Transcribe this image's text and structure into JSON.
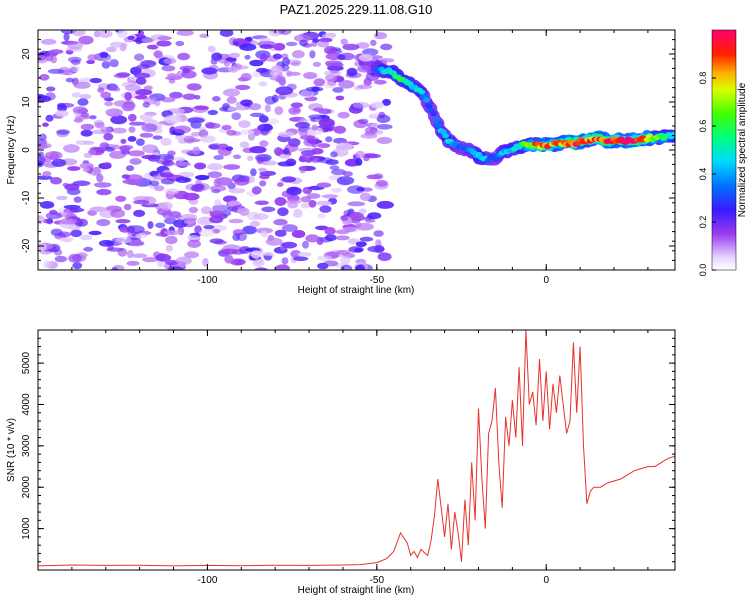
{
  "title": "PAZ1.2025.229.11.08.G10",
  "chart_data": [
    {
      "type": "heatmap",
      "title": "PAZ1.2025.229.11.08.G10",
      "xlabel": "Height of straight line (km)",
      "ylabel": "Frequency (Hz)",
      "xlim": [
        -150,
        38
      ],
      "ylim": [
        -25,
        25
      ],
      "x_ticks": [
        -100,
        -50,
        0
      ],
      "x_tick_labels": [
        "-100",
        "-50",
        "0"
      ],
      "y_ticks": [
        -20,
        -10,
        0,
        10,
        20
      ],
      "y_tick_labels": [
        "-20",
        "-10",
        "0",
        "10",
        "20"
      ],
      "grid": false,
      "noise_region": {
        "x_range": [
          -150,
          -47
        ],
        "y_range": [
          -25,
          25
        ],
        "typical_amplitude": [
          0.05,
          0.25
        ]
      },
      "signal_track": {
        "description_points_x": [
          -50,
          -47,
          -45,
          -43,
          -41,
          -39,
          -37,
          -35,
          -33,
          -31,
          -29,
          -27,
          -25,
          -23,
          -21,
          -19,
          -17,
          -15,
          -13,
          -11,
          -9,
          -7,
          -5,
          -3,
          0,
          3,
          6,
          9,
          12,
          15,
          18,
          21,
          24,
          27,
          30,
          33,
          36,
          38
        ],
        "frequency": [
          17,
          16.5,
          16,
          15,
          14,
          13,
          12,
          10,
          7,
          4,
          2,
          1,
          0.5,
          0,
          -1,
          -1.5,
          -1.8,
          -1.5,
          -0.5,
          0,
          0.5,
          1,
          1,
          1,
          1,
          1.2,
          1.5,
          1.5,
          2,
          2.5,
          2,
          2,
          2,
          2,
          2.5,
          2.5,
          3,
          3
        ],
        "amplitude": [
          0.35,
          0.45,
          0.5,
          0.55,
          0.55,
          0.5,
          0.45,
          0.35,
          0.3,
          0.4,
          0.45,
          0.4,
          0.3,
          0.35,
          0.45,
          0.5,
          0.35,
          0.3,
          0.4,
          0.45,
          0.5,
          0.55,
          0.7,
          0.85,
          0.9,
          0.8,
          0.9,
          0.95,
          0.85,
          0.9,
          0.95,
          0.95,
          0.95,
          0.95,
          0.9,
          0.6,
          0.55,
          0.5
        ]
      },
      "colorbar": {
        "label": "Normalized spectral amplitude",
        "range": [
          0,
          1
        ],
        "ticks": [
          0.0,
          0.2,
          0.4,
          0.6,
          0.8
        ],
        "tick_labels": [
          "0.0",
          "0.2",
          "0.4",
          "0.6",
          "0.8"
        ],
        "colormap": "rainbow (white, violet, blue, cyan, green, yellow, orange, red, magenta)"
      }
    },
    {
      "type": "line",
      "xlabel": "Height of straight line (km)",
      "ylabel": "SNR (10 * v/v)",
      "xlim": [
        -150,
        38
      ],
      "ylim": [
        0,
        5800
      ],
      "x_ticks": [
        -100,
        -50,
        0
      ],
      "x_tick_labels": [
        "-100",
        "-50",
        "0"
      ],
      "y_ticks": [
        1000,
        2000,
        3000,
        4000,
        5000
      ],
      "y_tick_labels": [
        "1000",
        "2000",
        "3000",
        "4000",
        "5000"
      ],
      "grid": false,
      "series": [
        {
          "color": "#e8322c",
          "x": [
            -150,
            -140,
            -130,
            -120,
            -110,
            -100,
            -90,
            -80,
            -70,
            -60,
            -55,
            -50,
            -47,
            -45,
            -43,
            -41,
            -40,
            -39,
            -38,
            -37,
            -36,
            -35,
            -34,
            -33,
            -32,
            -31,
            -30,
            -29,
            -28,
            -27,
            -26,
            -25,
            -24,
            -23,
            -22,
            -21,
            -20,
            -19,
            -18,
            -17,
            -16,
            -15,
            -14,
            -13,
            -12,
            -11,
            -10,
            -9,
            -8,
            -7,
            -6,
            -5,
            -4,
            -3,
            -2,
            -1,
            0,
            1,
            2,
            3,
            4,
            5,
            6,
            7,
            8,
            9,
            10,
            11,
            12,
            13,
            14,
            16,
            18,
            20,
            22,
            24,
            26,
            28,
            30,
            32,
            34,
            36,
            38
          ],
          "y": [
            100,
            120,
            110,
            115,
            100,
            110,
            105,
            115,
            110,
            120,
            130,
            180,
            280,
            450,
            900,
            650,
            350,
            450,
            300,
            500,
            420,
            350,
            700,
            1300,
            2200,
            1500,
            800,
            1600,
            500,
            1400,
            900,
            200,
            1700,
            600,
            2600,
            1200,
            3900,
            2200,
            1000,
            3300,
            3600,
            4400,
            2600,
            1500,
            3700,
            3000,
            4100,
            3200,
            4900,
            3000,
            5800,
            4000,
            4300,
            3500,
            5100,
            3600,
            4800,
            3400,
            4500,
            3800,
            4700,
            4000,
            3300,
            3600,
            5500,
            3800,
            5400,
            3000,
            1600,
            1900,
            2000,
            2000,
            2100,
            2150,
            2200,
            2300,
            2400,
            2450,
            2500,
            2500,
            2600,
            2700,
            2750
          ]
        }
      ]
    }
  ]
}
